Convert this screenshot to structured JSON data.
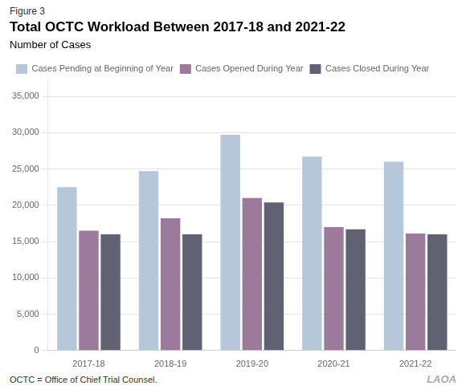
{
  "chart_data": {
    "type": "bar",
    "title": "Total OCTC Workload Between 2017-18 and 2021-22",
    "subtitle": "Number of Cases",
    "annotations": [
      "Figure 3",
      "OCTC = Office of Chief Trial Counsel.",
      "LAOA"
    ],
    "categories": [
      "2017-18",
      "2018-19",
      "2019-20",
      "2020-21",
      "2021-22"
    ],
    "series": [
      {
        "name": "Cases Pending at Beginning of Year",
        "color": "#b5c7d8",
        "values": [
          22500,
          24700,
          29700,
          26700,
          26000
        ]
      },
      {
        "name": "Cases Opened During Year",
        "color": "#9b7a9b",
        "values": [
          16500,
          18200,
          21000,
          17000,
          16100
        ]
      },
      {
        "name": "Cases Closed During Year",
        "color": "#616174",
        "values": [
          16000,
          16000,
          20400,
          16700,
          16000
        ]
      }
    ],
    "ylim": [
      0,
      37000
    ],
    "yticks": [
      0,
      {
        "value": 5000,
        "label": "5,000"
      },
      {
        "value": 10000,
        "label": "10,000"
      },
      {
        "value": 15000,
        "label": "15,000"
      },
      {
        "value": 20000,
        "label": "20,000"
      },
      {
        "value": 25000,
        "label": "25,000"
      },
      {
        "value": 30000,
        "label": "30,000"
      },
      {
        "value": 35000,
        "label": "35,000"
      }
    ],
    "grid": true,
    "legend": "upper left"
  }
}
